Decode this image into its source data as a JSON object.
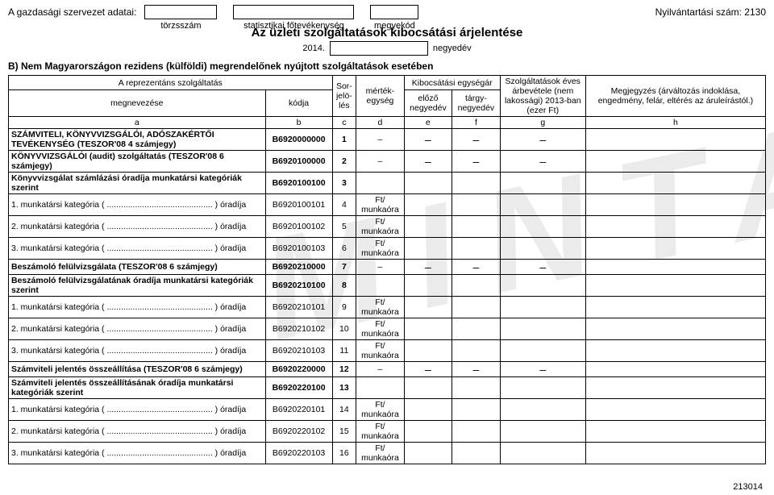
{
  "header": {
    "org_data": "A gazdasági szervezet adatai:",
    "boxes": [
      {
        "label": "törzsszám"
      },
      {
        "label": "statisztikai főtevékenység"
      },
      {
        "label": "megyekód"
      }
    ],
    "reg": "Nyilvántartási szám: 2130",
    "title": "Az üzleti szolgáltatások kibocsátási árjelentése",
    "year": "2014.",
    "quarter_label": "negyedév"
  },
  "sectionB": "B) Nem Magyarországon rezidens (külföldi) megrendelőnek nyújtott szolgáltatások esetében",
  "thead": {
    "rep": "A reprezentáns szolgáltatás",
    "megnev": "megnevezése",
    "kodja": "kódja",
    "sor": "Sor-jelö-lés",
    "mertek": "mérték-egység",
    "kibocs": "Kibocsátási egységár",
    "elozo": "előző negyedév",
    "targy": "tárgy-negyedév",
    "szolg": "Szolgáltatások éves árbevétele (nem lakossági) 2013-ban (ezer Ft)",
    "megj": "Megjegyzés (árváltozás indoklása, engedmény, felár, eltérés az áruleírástól.)",
    "letters": [
      "a",
      "b",
      "c",
      "d",
      "e",
      "f",
      "g",
      "h"
    ]
  },
  "rows": [
    {
      "a": "SZÁMVITELI, KÖNYVVIZSGÁLÓI, ADÓSZAKÉRTŐI TEVÉKENYSÉG (TESZOR'08 4 számjegy)",
      "b": "B6920000000",
      "c": "1",
      "d": "–",
      "e": "–",
      "f": "–",
      "g": "–",
      "bold": true
    },
    {
      "a": "KÖNYVVIZSGÁLÓI (audit) szolgáltatás (TESZOR'08 6 számjegy)",
      "b": "B6920100000",
      "c": "2",
      "d": "–",
      "e": "–",
      "f": "–",
      "g": "–",
      "bold": true
    },
    {
      "a": "Könyvvizsgálat számlázási óradíja munkatársi kategóriák szerint",
      "b": "B6920100100",
      "c": "3",
      "d": "",
      "bold": true
    },
    {
      "a": "1. munkatársi kategória ( ............................................. ) óradíja",
      "b": "B6920100101",
      "c": "4",
      "d": "Ft/ munkaóra"
    },
    {
      "a": "2. munkatársi kategória ( ............................................. ) óradíja",
      "b": "B6920100102",
      "c": "5",
      "d": "Ft/ munkaóra"
    },
    {
      "a": "3. munkatársi kategória ( ............................................. ) óradíja",
      "b": "B6920100103",
      "c": "6",
      "d": "Ft/ munkaóra"
    },
    {
      "a": "Beszámoló felülvizsgálata (TESZOR'08 6 számjegy)",
      "b": "B6920210000",
      "c": "7",
      "d": "–",
      "e": "–",
      "f": "–",
      "g": "–",
      "bold": true
    },
    {
      "a": "Beszámoló felülvizsgálatának óradíja munkatársi kategóriák szerint",
      "b": "B6920210100",
      "c": "8",
      "d": "",
      "bold": true
    },
    {
      "a": "1. munkatársi kategória ( ............................................. ) óradíja",
      "b": "B6920210101",
      "c": "9",
      "d": "Ft/ munkaóra"
    },
    {
      "a": "2. munkatársi kategória ( ............................................. ) óradíja",
      "b": "B6920210102",
      "c": "10",
      "d": "Ft/ munkaóra"
    },
    {
      "a": "3. munkatársi kategória ( ............................................. ) óradíja",
      "b": "B6920210103",
      "c": "11",
      "d": "Ft/ munkaóra"
    },
    {
      "a": "Számviteli jelentés összeállítása (TESZOR'08 6 számjegy)",
      "b": "B6920220000",
      "c": "12",
      "d": "–",
      "e": "–",
      "f": "–",
      "g": "–",
      "bold": true
    },
    {
      "a": "Számviteli jelentés összeállításának óradíja munkatársi kategóriák szerint",
      "b": "B6920220100",
      "c": "13",
      "d": "",
      "bold": true
    },
    {
      "a": "1. munkatársi kategória ( ............................................. ) óradíja",
      "b": "B6920220101",
      "c": "14",
      "d": "Ft/ munkaóra"
    },
    {
      "a": "2. munkatársi kategória ( ............................................. ) óradíja",
      "b": "B6920220102",
      "c": "15",
      "d": "Ft/ munkaóra"
    },
    {
      "a": "3. munkatársi kategória ( ............................................. ) óradíja",
      "b": "B6920220103",
      "c": "16",
      "d": "Ft/ munkaóra"
    }
  ],
  "footer": "213014",
  "style": {
    "border_color": "#000000",
    "bg": "#ffffff",
    "watermark_text": "MINTA",
    "watermark_color": "rgba(0,0,0,0.08)"
  }
}
